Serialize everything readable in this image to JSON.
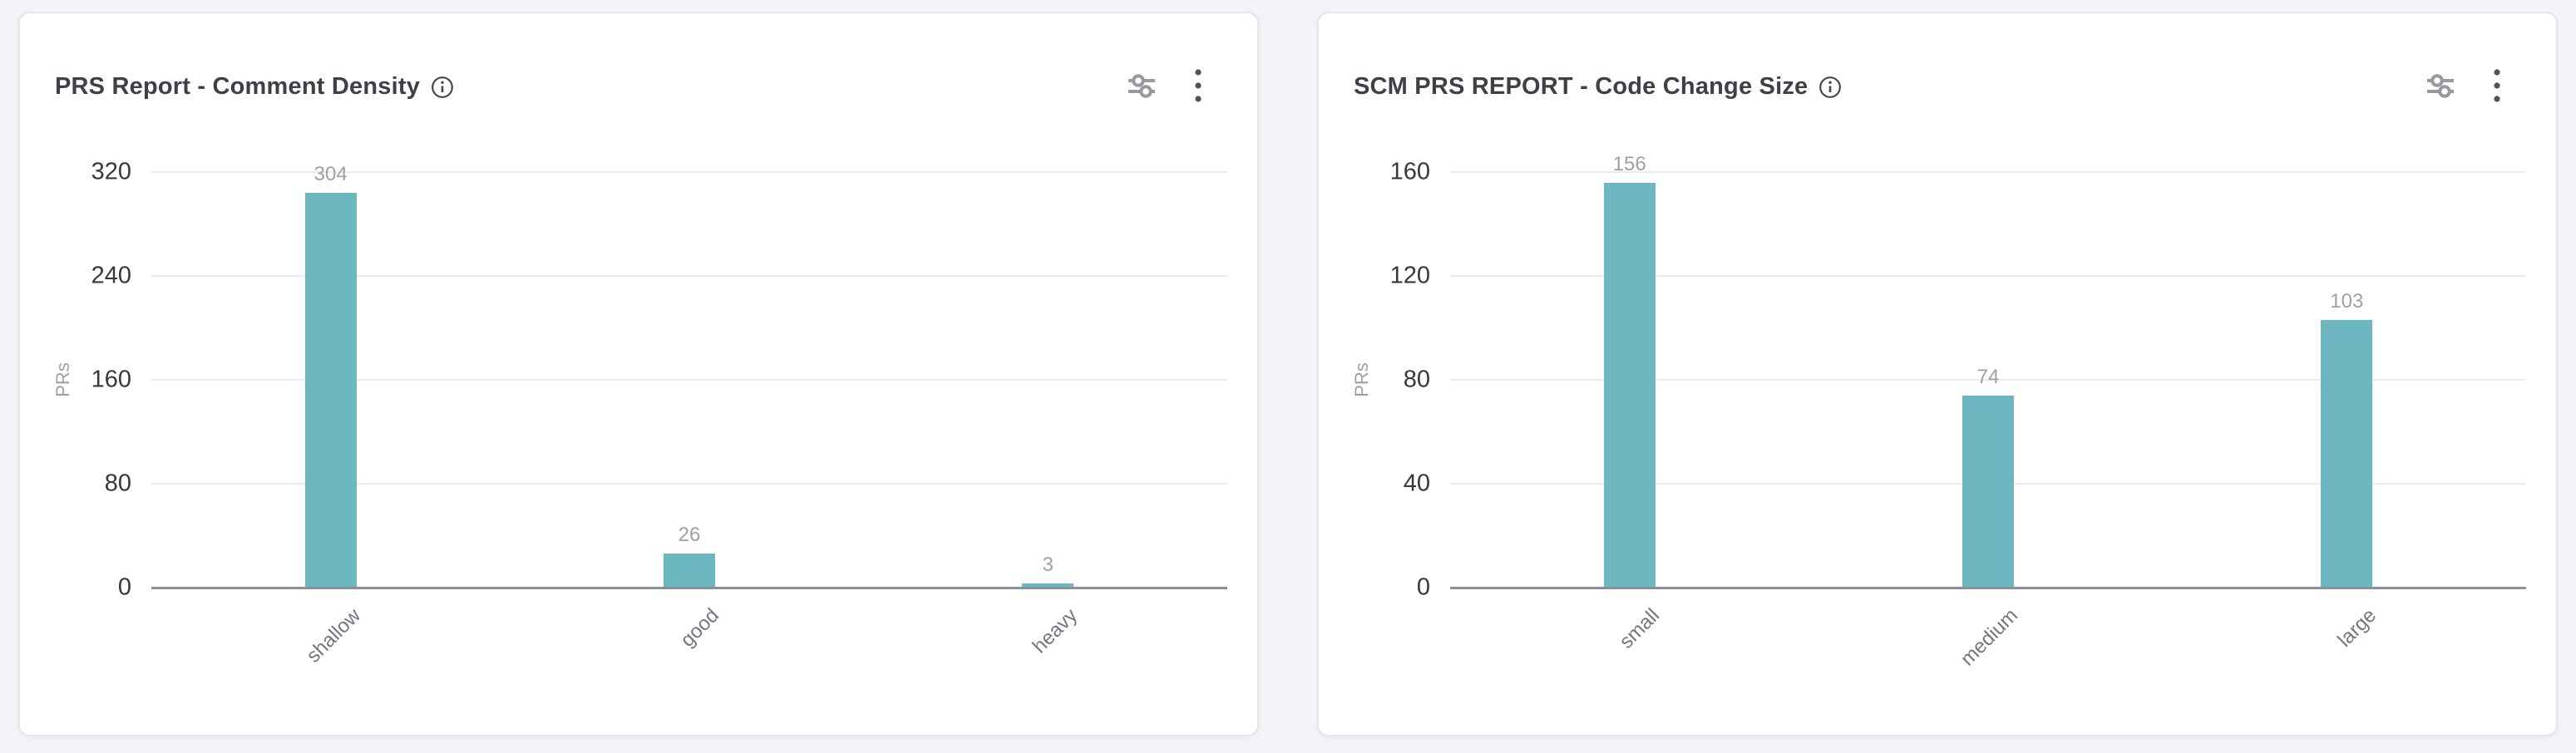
{
  "colors": {
    "page_bg": "#f2f4f8",
    "card_bg": "#ffffff",
    "card_border": "#e4e6ec",
    "title_text": "#3d4045",
    "bar_fill": "#6db8c0",
    "grid_line": "#ececf0",
    "axis_line": "#8a909b",
    "y_tick_text": "#35383c",
    "value_label_text": "#9ca1a8",
    "category_text": "#73777d",
    "axis_name_text": "#9aa0a8",
    "toolbar_icon": "#97999e",
    "kebab_dot": "#505257",
    "info_icon": "#44474c"
  },
  "cards": [
    {
      "title": "PRS Report - Comment Density",
      "icons": [
        "info-icon",
        "filters-icon",
        "kebab-menu-icon"
      ]
    },
    {
      "title": "SCM PRS REPORT - Code Change Size",
      "icons": [
        "info-icon",
        "filters-icon",
        "kebab-menu-icon"
      ]
    }
  ],
  "chart_data": [
    {
      "type": "bar",
      "title": "PRS Report - Comment Density",
      "categories": [
        "shallow",
        "good",
        "heavy"
      ],
      "values": [
        304,
        26,
        3
      ],
      "value_labels": [
        "304",
        "26",
        "3"
      ],
      "xlabel": "",
      "ylabel": "PRs",
      "ylim": [
        0,
        320
      ],
      "yticks": [
        0,
        80,
        160,
        240,
        320
      ],
      "grid": true,
      "legend": "none",
      "bar_color": "#6db8c0",
      "x_tick_rotation": 45
    },
    {
      "type": "bar",
      "title": "SCM PRS REPORT - Code Change Size",
      "categories": [
        "small",
        "medium",
        "large"
      ],
      "values": [
        156,
        74,
        103
      ],
      "value_labels": [
        "156",
        "74",
        "103"
      ],
      "xlabel": "",
      "ylabel": "PRs",
      "ylim": [
        0,
        160
      ],
      "yticks": [
        0,
        40,
        80,
        120,
        160
      ],
      "grid": true,
      "legend": "none",
      "bar_color": "#6db8c0",
      "x_tick_rotation": 45
    }
  ]
}
